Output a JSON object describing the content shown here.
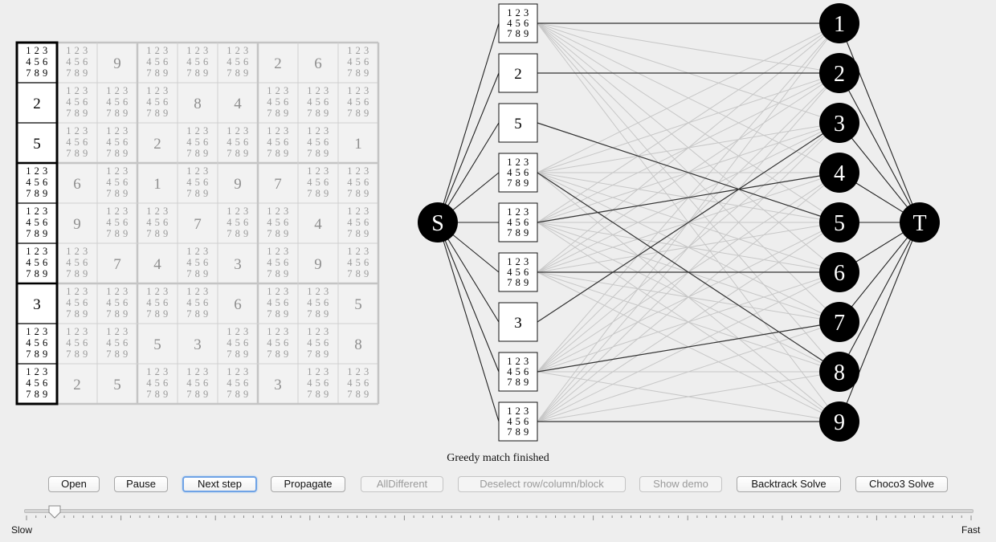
{
  "sudoku": {
    "candidates": "1 2 3|4 5 6|7 8 9",
    "cells": [
      [
        "",
        "",
        "9",
        "",
        "",
        "",
        "2",
        "6",
        ""
      ],
      [
        "2",
        "",
        "",
        "",
        "8",
        "4",
        "",
        "",
        ""
      ],
      [
        "5",
        "",
        "",
        "2",
        "",
        "",
        "",
        "",
        "1"
      ],
      [
        "",
        "6",
        "",
        "1",
        "",
        "9",
        "7",
        "",
        ""
      ],
      [
        "",
        "9",
        "",
        "",
        "7",
        "",
        "",
        "4",
        ""
      ],
      [
        "",
        "",
        "7",
        "4",
        "",
        "3",
        "",
        "9",
        ""
      ],
      [
        "3",
        "",
        "",
        "",
        "",
        "6",
        "",
        "",
        "5"
      ],
      [
        "",
        "",
        "",
        "5",
        "3",
        "",
        "",
        "",
        "8"
      ],
      [
        "",
        "2",
        "5",
        "",
        "",
        "",
        "3",
        "",
        ""
      ]
    ],
    "selected_column": 0
  },
  "graph": {
    "source_label": "S",
    "sink_label": "T",
    "left_nodes": [
      "",
      "2",
      "5",
      "",
      "",
      "",
      "3",
      "",
      ""
    ],
    "right_nodes": [
      "1",
      "2",
      "3",
      "4",
      "5",
      "6",
      "7",
      "8",
      "9"
    ],
    "matching": [
      [
        0,
        0
      ],
      [
        1,
        1
      ],
      [
        2,
        4
      ],
      [
        3,
        7
      ],
      [
        4,
        3
      ],
      [
        5,
        5
      ],
      [
        6,
        2
      ],
      [
        7,
        6
      ],
      [
        8,
        8
      ]
    ]
  },
  "status_text": "Greedy match finished",
  "buttons": [
    {
      "label": "Open",
      "enabled": true
    },
    {
      "label": "Pause",
      "enabled": true
    },
    {
      "label": "Next step",
      "enabled": true,
      "focused": true
    },
    {
      "label": "Propagate",
      "enabled": true
    },
    {
      "label": "AllDifferent",
      "enabled": false
    },
    {
      "label": "Deselect row/column/block",
      "enabled": false
    },
    {
      "label": "Show demo",
      "enabled": false
    },
    {
      "label": "Backtrack Solve",
      "enabled": true
    },
    {
      "label": "Choco3 Solve",
      "enabled": true
    }
  ],
  "speed_slider": {
    "min_label": "Slow",
    "max_label": "Fast",
    "value_fraction": 0.03
  }
}
